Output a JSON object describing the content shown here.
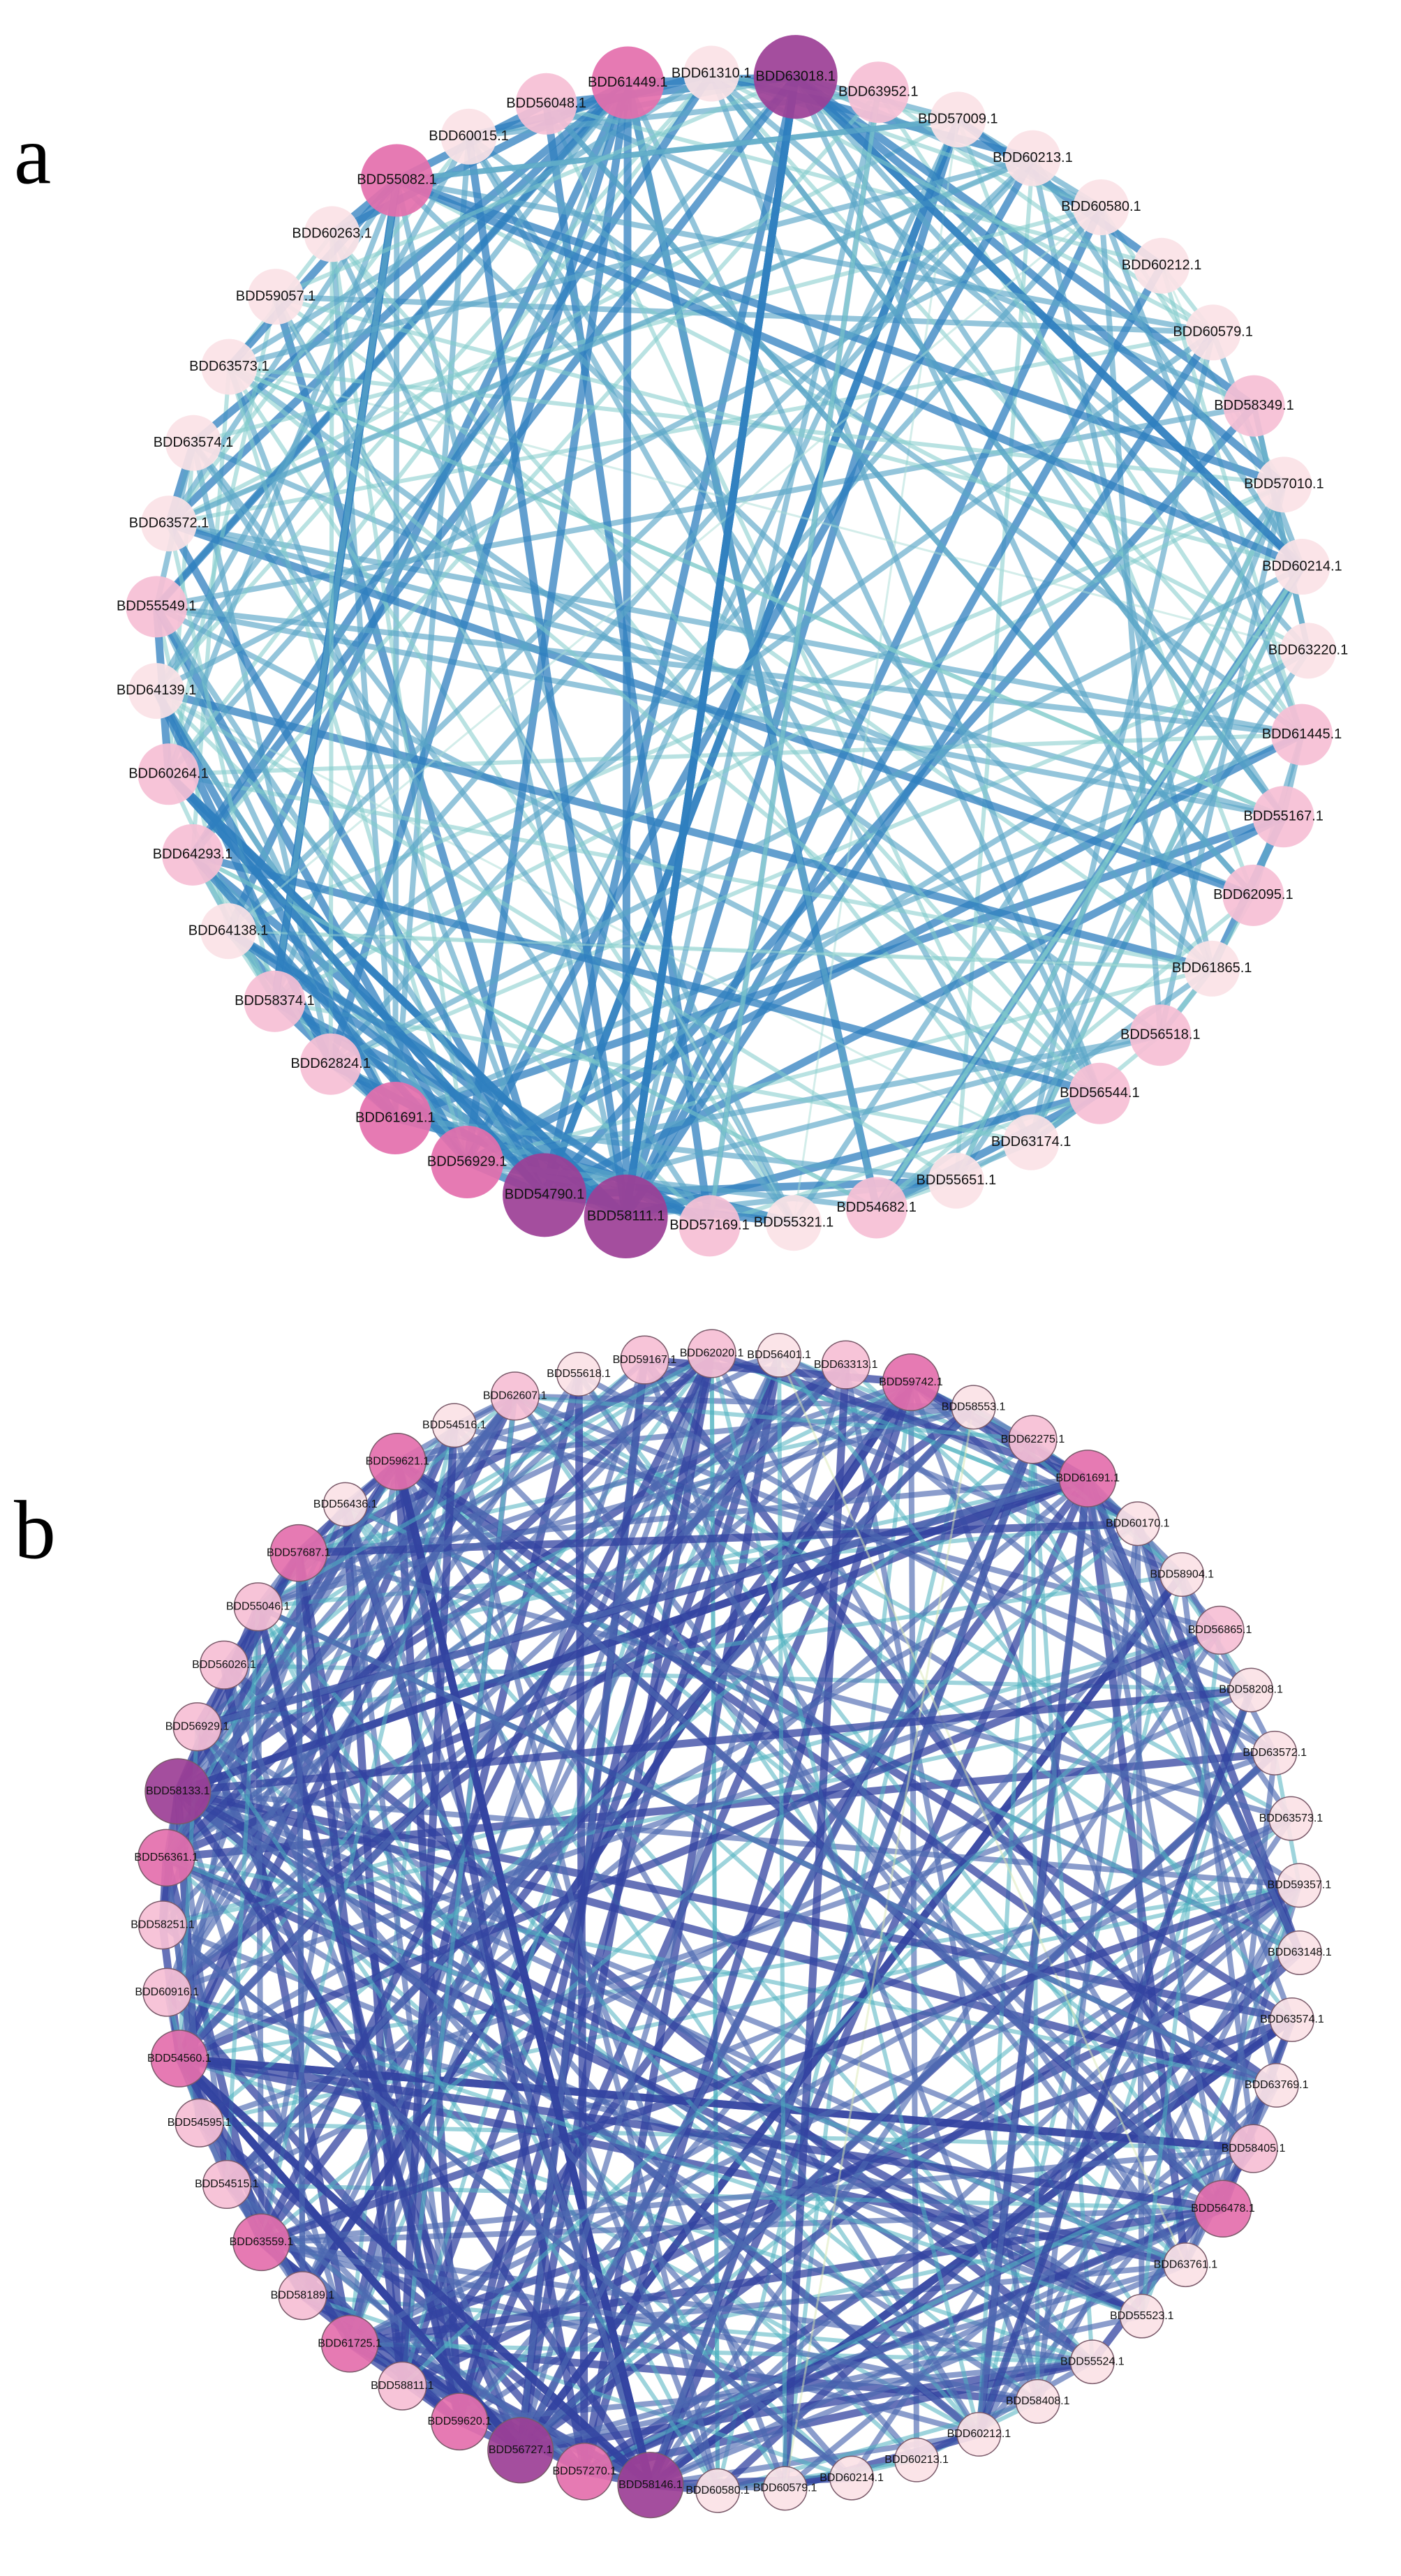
{
  "panels": [
    {
      "letter": "a",
      "nodes": [
        {
          "label": "BDD61310.1",
          "color": "#fbe2e6"
        },
        {
          "label": "BDD63018.1",
          "color": "#9c3f96"
        },
        {
          "label": "BDD63952.1",
          "color": "#f6bfd5"
        },
        {
          "label": "BDD57009.1",
          "color": "#fbe2e6"
        },
        {
          "label": "BDD60213.1",
          "color": "#fbe2e6"
        },
        {
          "label": "BDD60580.1",
          "color": "#fbe2e6"
        },
        {
          "label": "BDD60212.1",
          "color": "#fbe2e6"
        },
        {
          "label": "BDD60579.1",
          "color": "#fbe2e6"
        },
        {
          "label": "BDD58349.1",
          "color": "#f6bfd5"
        },
        {
          "label": "BDD57010.1",
          "color": "#fbe2e6"
        },
        {
          "label": "BDD60214.1",
          "color": "#fbe2e6"
        },
        {
          "label": "BDD63220.1",
          "color": "#fbe2e6"
        },
        {
          "label": "BDD61445.1",
          "color": "#f6bfd5"
        },
        {
          "label": "BDD55167.1",
          "color": "#f6bfd5"
        },
        {
          "label": "BDD62095.1",
          "color": "#f6bfd5"
        },
        {
          "label": "BDD61865.1",
          "color": "#fbe2e6"
        },
        {
          "label": "BDD56518.1",
          "color": "#f6bfd5"
        },
        {
          "label": "BDD56544.1",
          "color": "#f6bfd5"
        },
        {
          "label": "BDD63174.1",
          "color": "#fbe2e6"
        },
        {
          "label": "BDD55651.1",
          "color": "#fbe2e6"
        },
        {
          "label": "BDD54682.1",
          "color": "#f6bfd5"
        },
        {
          "label": "BDD55321.1",
          "color": "#fbe2e6"
        },
        {
          "label": "BDD57169.1",
          "color": "#f6bfd5"
        },
        {
          "label": "BDD58111.1",
          "color": "#9c3f96"
        },
        {
          "label": "BDD54790.1",
          "color": "#9c3f96"
        },
        {
          "label": "BDD56929.1",
          "color": "#e46fac"
        },
        {
          "label": "BDD61691.1",
          "color": "#e46fac"
        },
        {
          "label": "BDD62824.1",
          "color": "#f6bfd5"
        },
        {
          "label": "BDD58374.1",
          "color": "#f6bfd5"
        },
        {
          "label": "BDD64138.1",
          "color": "#fbe2e6"
        },
        {
          "label": "BDD64293.1",
          "color": "#f6bfd5"
        },
        {
          "label": "BDD60264.1",
          "color": "#f6bfd5"
        },
        {
          "label": "BDD64139.1",
          "color": "#fbe2e6"
        },
        {
          "label": "BDD55549.1",
          "color": "#f6bfd5"
        },
        {
          "label": "BDD63572.1",
          "color": "#fbe2e6"
        },
        {
          "label": "BDD63574.1",
          "color": "#fbe2e6"
        },
        {
          "label": "BDD63573.1",
          "color": "#fbe2e6"
        },
        {
          "label": "BDD59057.1",
          "color": "#fbe2e6"
        },
        {
          "label": "BDD60263.1",
          "color": "#fbe2e6"
        },
        {
          "label": "BDD55082.1",
          "color": "#e46fac"
        },
        {
          "label": "BDD60015.1",
          "color": "#fbe2e6"
        },
        {
          "label": "BDD56048.1",
          "color": "#f6bfd5"
        },
        {
          "label": "BDD61449.1",
          "color": "#e46fac"
        }
      ]
    },
    {
      "letter": "b",
      "nodes": [
        {
          "label": "BDD62020.1",
          "color": "#f6bfd5"
        },
        {
          "label": "BDD56401.1",
          "color": "#fbe2e6"
        },
        {
          "label": "BDD63313.1",
          "color": "#f6bfd5"
        },
        {
          "label": "BDD59742.1",
          "color": "#e46fac"
        },
        {
          "label": "BDD58553.1",
          "color": "#fbe2e6"
        },
        {
          "label": "BDD62275.1",
          "color": "#f6bfd5"
        },
        {
          "label": "BDD61691.1",
          "color": "#e46fac"
        },
        {
          "label": "BDD60170.1",
          "color": "#fbe2e6"
        },
        {
          "label": "BDD58904.1",
          "color": "#fbe2e6"
        },
        {
          "label": "BDD56865.1",
          "color": "#f6bfd5"
        },
        {
          "label": "BDD58208.1",
          "color": "#fbe2e6"
        },
        {
          "label": "BDD63572.1",
          "color": "#fbe2e6"
        },
        {
          "label": "BDD63573.1",
          "color": "#fbe2e6"
        },
        {
          "label": "BDD59357.1",
          "color": "#fbe2e6"
        },
        {
          "label": "BDD63148.1",
          "color": "#fbe2e6"
        },
        {
          "label": "BDD63574.1",
          "color": "#fbe2e6"
        },
        {
          "label": "BDD63769.1",
          "color": "#fbe2e6"
        },
        {
          "label": "BDD58405.1",
          "color": "#f6bfd5"
        },
        {
          "label": "BDD56478.1",
          "color": "#e46fac"
        },
        {
          "label": "BDD63761.1",
          "color": "#fbe2e6"
        },
        {
          "label": "BDD55523.1",
          "color": "#fbe2e6"
        },
        {
          "label": "BDD55524.1",
          "color": "#fbe2e6"
        },
        {
          "label": "BDD58408.1",
          "color": "#fbe2e6"
        },
        {
          "label": "BDD60212.1",
          "color": "#fbe2e6"
        },
        {
          "label": "BDD60213.1",
          "color": "#fbe2e6"
        },
        {
          "label": "BDD60214.1",
          "color": "#fbe2e6"
        },
        {
          "label": "BDD60579.1",
          "color": "#fbe2e6"
        },
        {
          "label": "BDD60580.1",
          "color": "#fbe2e6"
        },
        {
          "label": "BDD58146.1",
          "color": "#9c3f96"
        },
        {
          "label": "BDD57270.1",
          "color": "#e46fac"
        },
        {
          "label": "BDD56727.1",
          "color": "#9c3f96"
        },
        {
          "label": "BDD59620.1",
          "color": "#e46fac"
        },
        {
          "label": "BDD58811.1",
          "color": "#f6bfd5"
        },
        {
          "label": "BDD61725.1",
          "color": "#e46fac"
        },
        {
          "label": "BDD58189.1",
          "color": "#f6bfd5"
        },
        {
          "label": "BDD63559.1",
          "color": "#e46fac"
        },
        {
          "label": "BDD54515.1",
          "color": "#f6bfd5"
        },
        {
          "label": "BDD54595.1",
          "color": "#f6bfd5"
        },
        {
          "label": "BDD54560.1",
          "color": "#e46fac"
        },
        {
          "label": "BDD60916.1",
          "color": "#f6bfd5"
        },
        {
          "label": "BDD58251.1",
          "color": "#f6bfd5"
        },
        {
          "label": "BDD56361.1",
          "color": "#e46fac"
        },
        {
          "label": "BDD58133.1",
          "color": "#9c3f96"
        },
        {
          "label": "BDD56929.1",
          "color": "#f6bfd5"
        },
        {
          "label": "BDD56026.1",
          "color": "#f6bfd5"
        },
        {
          "label": "BDD55046.1",
          "color": "#f6bfd5"
        },
        {
          "label": "BDD57687.1",
          "color": "#e46fac"
        },
        {
          "label": "BDD56436.1",
          "color": "#fbe2e6"
        },
        {
          "label": "BDD59621.1",
          "color": "#e46fac"
        },
        {
          "label": "BDD54516.1",
          "color": "#fbe2e6"
        },
        {
          "label": "BDD62607.1",
          "color": "#f6bfd5"
        },
        {
          "label": "BDD55618.1",
          "color": "#fbe2e6"
        },
        {
          "label": "BDD59167.1",
          "color": "#f6bfd5"
        }
      ]
    }
  ]
}
